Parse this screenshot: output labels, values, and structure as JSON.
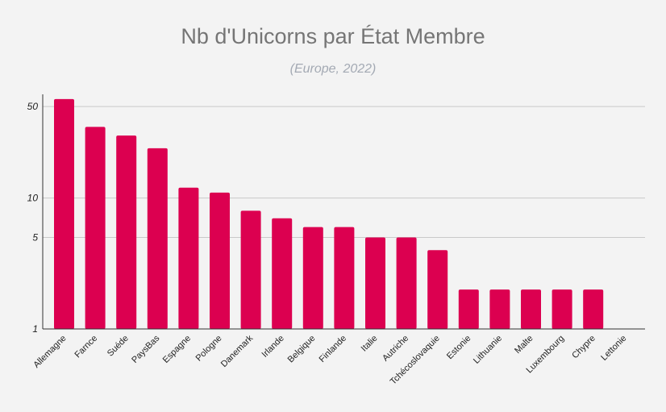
{
  "chart_data": {
    "type": "bar",
    "title": "Nb d'Unicorns par État Membre",
    "subtitle": "(Europe, 2022)",
    "xlabel": "",
    "ylabel": "",
    "yscale": "log",
    "ylim": [
      1,
      62
    ],
    "yticks": [
      1,
      5,
      10,
      50
    ],
    "grid": true,
    "legend": "none",
    "bar_color": "#dc0050",
    "categories": [
      "Allemagne",
      "Farnce",
      "Suéde",
      "PaysBas",
      "Espagne",
      "Pologne",
      "Danemark",
      "Irlande",
      "Belgique",
      "Finlande",
      "Italie",
      "Autriche",
      "Tchécoslovaquie",
      "Estonie",
      "Lithuanie",
      "Malte",
      "Luxembourg",
      "Chypre",
      "Lettonie"
    ],
    "values": [
      57,
      35,
      30,
      24,
      12,
      11,
      8,
      7,
      6,
      6,
      5,
      5,
      4,
      2,
      2,
      2,
      2,
      2,
      1
    ]
  }
}
